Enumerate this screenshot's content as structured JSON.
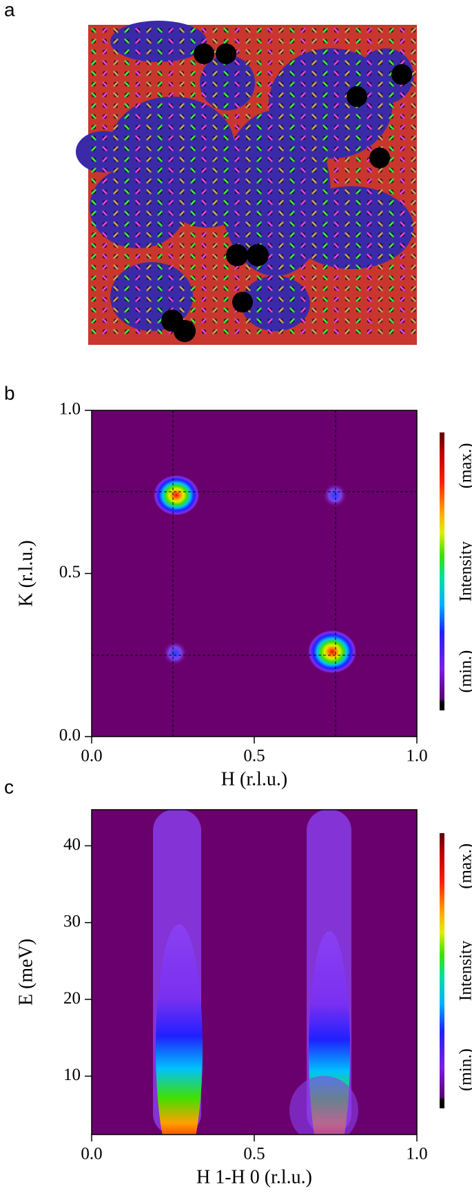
{
  "panel_a": {
    "label": "a"
  },
  "chart_data": [
    {
      "type": "contour",
      "label": "b",
      "xlabel": "H (r.l.u.)",
      "ylabel": "K (r.l.u.)",
      "xlim": [
        0,
        1
      ],
      "ylim": [
        0,
        1
      ],
      "xticks": [
        {
          "value": 0,
          "label": "0.0"
        },
        {
          "value": 0.5,
          "label": "0.5"
        },
        {
          "value": 1,
          "label": "1.0"
        }
      ],
      "yticks": [
        {
          "value": 0,
          "label": "0.0"
        },
        {
          "value": 0.5,
          "label": "0.5"
        },
        {
          "value": 1,
          "label": "1.0"
        }
      ],
      "colorbar_labels": [
        "(min.)",
        "Intensity",
        "(max.)"
      ]
    },
    {
      "type": "contour",
      "label": "c",
      "xlabel": "H 1-H 0 (r.l.u.)",
      "ylabel": "E (meV)",
      "xlim": [
        0,
        1
      ],
      "ylim": [
        2.4,
        44.7
      ],
      "xticks": [
        {
          "value": 0,
          "label": "0.0"
        },
        {
          "value": 0.5,
          "label": "0.5"
        },
        {
          "value": 1,
          "label": "1.0"
        }
      ],
      "yticks": [
        10,
        20,
        30,
        40
      ],
      "colorbar_labels": [
        "(min.)",
        "Intensity",
        "(max.)"
      ]
    }
  ]
}
